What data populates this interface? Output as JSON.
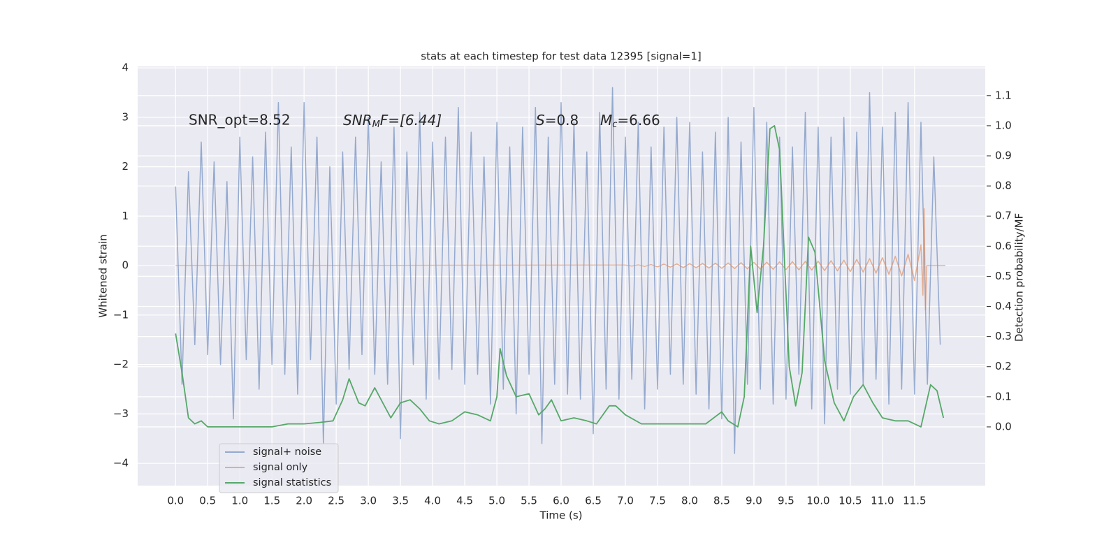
{
  "chart_data": {
    "type": "line",
    "title": "stats at each timestep for test data 12395 [signal=1]",
    "xlabel": "Time (s)",
    "ylabel": "Whitened strain",
    "y2label": "Detection probability/MF",
    "annotations": [
      {
        "text": "SNR_opt=8.52"
      },
      {
        "text": "SNR",
        "sub": "M",
        "rest": "F=[6.44]"
      },
      {
        "text": "S",
        "rest": "=0.8"
      },
      {
        "text": "M",
        "sub": "c",
        "rest": "=6.66"
      }
    ],
    "grid": true,
    "legend_loc": "lower left",
    "xlim": [
      -0.59,
      12.6
    ],
    "ylim": [
      -4.45,
      4.03
    ],
    "y2lim": [
      -0.195,
      1.197
    ],
    "xticks": [
      {
        "value": 0,
        "label": "0.0"
      },
      0.5,
      {
        "value": 1,
        "label": "1.0"
      },
      1.5,
      {
        "value": 2,
        "label": "2.0"
      },
      2.5,
      {
        "value": 3,
        "label": "3.0"
      },
      3.5,
      {
        "value": 4,
        "label": "4.0"
      },
      4.5,
      {
        "value": 5,
        "label": "5.0"
      },
      5.5,
      {
        "value": 6,
        "label": "6.0"
      },
      6.5,
      {
        "value": 7,
        "label": "7.0"
      },
      7.5,
      {
        "value": 8,
        "label": "8.0"
      },
      8.5,
      {
        "value": 9,
        "label": "9.0"
      },
      9.5,
      {
        "value": 10,
        "label": "10.0"
      },
      10.5,
      {
        "value": 11,
        "label": "11.0"
      },
      11.5
    ],
    "yticks": [
      {
        "value": -4,
        "label": "−4"
      },
      {
        "value": -3,
        "label": "−3"
      },
      {
        "value": -2,
        "label": "−2"
      },
      {
        "value": -1,
        "label": "−1"
      },
      0,
      1,
      2,
      3,
      4
    ],
    "y2ticks": [
      {
        "value": 0,
        "label": "0.0"
      },
      0.1,
      0.2,
      0.3,
      0.4,
      0.5,
      0.6,
      0.7,
      0.8,
      0.9,
      {
        "value": 1,
        "label": "1.0"
      },
      1.1
    ],
    "series": [
      {
        "name": "signal+ noise",
        "color": "#4c72b0",
        "alpha": 0.55,
        "axis": "y",
        "x": [
          0,
          0.1,
          0.2,
          0.3,
          0.4,
          0.5,
          0.6,
          0.7,
          0.8,
          0.9,
          1,
          1.1,
          1.2,
          1.3,
          1.4,
          1.5,
          1.6,
          1.7,
          1.8,
          1.9,
          2,
          2.1,
          2.2,
          2.3,
          2.4,
          2.5,
          2.6,
          2.7,
          2.8,
          2.9,
          3,
          3.1,
          3.2,
          3.3,
          3.4,
          3.5,
          3.6,
          3.7,
          3.8,
          3.9,
          4,
          4.1,
          4.2,
          4.3,
          4.4,
          4.5,
          4.6,
          4.7,
          4.8,
          4.9,
          5,
          5.1,
          5.2,
          5.3,
          5.4,
          5.5,
          5.6,
          5.7,
          5.8,
          5.9,
          6,
          6.1,
          6.2,
          6.3,
          6.4,
          6.5,
          6.6,
          6.7,
          6.8,
          6.9,
          7,
          7.1,
          7.2,
          7.3,
          7.4,
          7.5,
          7.6,
          7.7,
          7.8,
          7.9,
          8,
          8.1,
          8.2,
          8.3,
          8.4,
          8.5,
          8.6,
          8.7,
          8.8,
          8.9,
          9,
          9.1,
          9.2,
          9.3,
          9.4,
          9.5,
          9.6,
          9.7,
          9.8,
          9.9,
          10,
          10.1,
          10.2,
          10.3,
          10.4,
          10.5,
          10.6,
          10.7,
          10.8,
          10.9,
          11,
          11.1,
          11.2,
          11.3,
          11.4,
          11.5,
          11.6,
          11.7,
          11.8,
          11.9
        ],
        "values": [
          1.6,
          -2.4,
          1.9,
          -1.6,
          2.5,
          -1.8,
          2.1,
          -2.0,
          1.7,
          -3.1,
          2.6,
          -1.9,
          2.2,
          -2.5,
          2.7,
          -2.0,
          3.3,
          -2.2,
          2.4,
          -2.6,
          3.3,
          -1.9,
          2.6,
          -3.6,
          2.0,
          -2.8,
          2.3,
          -2.1,
          2.6,
          -1.8,
          3.0,
          -2.2,
          2.1,
          -2.4,
          2.8,
          -3.5,
          2.3,
          -2.0,
          3.1,
          -2.7,
          2.5,
          -2.3,
          2.6,
          -2.1,
          3.2,
          -2.4,
          2.7,
          -2.2,
          2.2,
          -2.8,
          2.9,
          -2.5,
          2.4,
          -3.0,
          2.8,
          -2.2,
          3.2,
          -3.6,
          2.6,
          -2.4,
          3.3,
          -2.6,
          2.9,
          -2.7,
          2.3,
          -3.4,
          3.1,
          -2.5,
          3.6,
          -2.7,
          2.6,
          -2.3,
          2.9,
          -2.9,
          2.4,
          -2.5,
          2.8,
          -2.2,
          3.0,
          -2.4,
          2.9,
          -2.6,
          2.3,
          -2.9,
          2.7,
          -3.1,
          3.0,
          -3.8,
          2.5,
          -2.4,
          3.2,
          -2.5,
          2.9,
          -2.8,
          2.6,
          -2.7,
          2.4,
          -2.2,
          3.1,
          -2.9,
          2.8,
          -3.2,
          2.6,
          -2.5,
          3.0,
          -2.6,
          2.7,
          -2.4,
          3.5,
          -2.3,
          2.8,
          -2.8,
          3.1,
          -2.5,
          3.3,
          -2.6,
          2.9,
          -2.4,
          2.2,
          -1.6
        ]
      },
      {
        "name": "signal only",
        "color": "#dd8452",
        "alpha": 0.6,
        "axis": "y",
        "x": [
          0,
          7,
          7.1,
          7.2,
          7.3,
          7.4,
          7.5,
          7.6,
          7.7,
          7.8,
          7.9,
          8,
          8.1,
          8.2,
          8.3,
          8.4,
          8.5,
          8.6,
          8.7,
          8.8,
          8.9,
          9,
          9.1,
          9.2,
          9.3,
          9.4,
          9.5,
          9.6,
          9.7,
          9.8,
          9.9,
          10,
          10.1,
          10.2,
          10.3,
          10.4,
          10.5,
          10.6,
          10.7,
          10.8,
          10.9,
          11,
          11.1,
          11.2,
          11.3,
          11.4,
          11.5,
          11.6,
          11.63,
          11.65,
          11.67,
          11.69,
          11.98
        ],
        "values": [
          0,
          0.01,
          -0.01,
          0.015,
          -0.015,
          0.02,
          -0.025,
          0.03,
          -0.03,
          0.035,
          -0.04,
          0.04,
          -0.045,
          0.045,
          -0.05,
          0.05,
          -0.055,
          0.055,
          -0.06,
          0.06,
          -0.065,
          0.065,
          -0.07,
          0.07,
          -0.075,
          0.075,
          -0.08,
          0.08,
          -0.085,
          0.085,
          -0.09,
          0.09,
          -0.1,
          0.1,
          -0.105,
          0.11,
          -0.12,
          0.125,
          -0.13,
          0.14,
          -0.15,
          0.16,
          -0.175,
          0.19,
          -0.21,
          0.23,
          -0.3,
          0.42,
          -0.6,
          1.15,
          -0.9,
          0,
          0
        ]
      },
      {
        "name": "signal statistics",
        "color": "#55a868",
        "alpha": 1,
        "axis": "y2",
        "x": [
          0,
          0.1,
          0.2,
          0.3,
          0.4,
          0.5,
          0.75,
          1,
          1.25,
          1.5,
          1.75,
          2,
          2.25,
          2.45,
          2.6,
          2.7,
          2.85,
          2.95,
          3.1,
          3.25,
          3.35,
          3.5,
          3.65,
          3.8,
          3.95,
          4.1,
          4.3,
          4.5,
          4.7,
          4.9,
          5,
          5.05,
          5.15,
          5.3,
          5.5,
          5.65,
          5.75,
          5.85,
          6,
          6.2,
          6.4,
          6.55,
          6.75,
          6.85,
          7,
          7.25,
          7.5,
          8,
          8.25,
          8.5,
          8.6,
          8.75,
          8.85,
          8.95,
          9.05,
          9.15,
          9.25,
          9.32,
          9.4,
          9.55,
          9.65,
          9.75,
          9.85,
          9.95,
          10.1,
          10.25,
          10.4,
          10.55,
          10.7,
          10.85,
          11,
          11.2,
          11.4,
          11.6,
          11.75,
          11.85,
          11.95
        ],
        "values": [
          0.31,
          0.18,
          0.03,
          0.01,
          0.02,
          0,
          0,
          0,
          0,
          0,
          0.01,
          0.01,
          0.015,
          0.02,
          0.09,
          0.16,
          0.08,
          0.07,
          0.13,
          0.07,
          0.03,
          0.08,
          0.09,
          0.06,
          0.02,
          0.01,
          0.02,
          0.05,
          0.04,
          0.02,
          0.1,
          0.26,
          0.17,
          0.1,
          0.11,
          0.04,
          0.06,
          0.09,
          0.02,
          0.03,
          0.02,
          0.01,
          0.07,
          0.07,
          0.04,
          0.01,
          0.01,
          0.01,
          0.01,
          0.05,
          0.02,
          0,
          0.1,
          0.6,
          0.38,
          0.6,
          0.99,
          1,
          0.92,
          0.2,
          0.07,
          0.18,
          0.63,
          0.58,
          0.22,
          0.08,
          0.02,
          0.1,
          0.14,
          0.08,
          0.03,
          0.02,
          0.02,
          0,
          0.14,
          0.12,
          0.03
        ]
      }
    ]
  }
}
